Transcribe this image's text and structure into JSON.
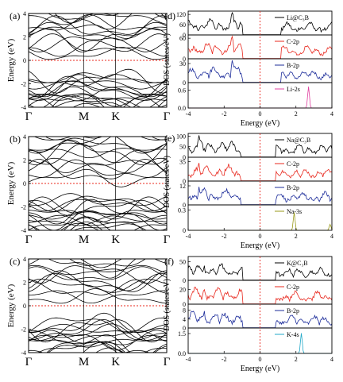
{
  "chart_data": [
    {
      "type": "line",
      "panel_label": "(a)",
      "ylabel": "Energy (eV)",
      "ylim": [
        -4,
        4
      ],
      "yticks": [
        "4",
        "2",
        "0",
        "-2",
        "-4"
      ],
      "k_labels": [
        "Γ",
        "M",
        "K",
        "Γ"
      ],
      "fermi_level": 0
    },
    {
      "type": "line",
      "panel_label": "(d)",
      "ylabel": "DOS (states/eV)",
      "xlabel": "Energy (eV)",
      "xlim": [
        -4,
        4
      ],
      "xticks": [
        "-4",
        "-2",
        "0",
        "2",
        "4"
      ],
      "subplots": [
        {
          "legend": "Li@C₃B",
          "color": "#000000",
          "yticks": [
            "120",
            "60",
            "0"
          ],
          "ylim": [
            0,
            130
          ]
        },
        {
          "legend": "C-2p",
          "color": "#e8281e",
          "yticks": [
            "60",
            "0"
          ],
          "ylim": [
            0,
            65
          ]
        },
        {
          "legend": "B-2p",
          "color": "#1c2c9a",
          "yticks": [
            "30",
            "0"
          ],
          "ylim": [
            0,
            35
          ]
        },
        {
          "legend": "Li-2s",
          "color": "#e040a0",
          "yticks": [
            "0.6",
            "0.0"
          ],
          "ylim": [
            0,
            0.8
          ]
        }
      ]
    },
    {
      "type": "line",
      "panel_label": "(b)",
      "ylabel": "Energy (eV)",
      "ylim": [
        -4,
        4
      ],
      "yticks": [
        "4",
        "2",
        "0",
        "-2",
        "-4"
      ],
      "k_labels": [
        "Γ",
        "M",
        "K",
        "Γ"
      ],
      "fermi_level": 0
    },
    {
      "type": "line",
      "panel_label": "(e)",
      "ylabel": "DOS (states/eV)",
      "xlabel": "Energy (eV)",
      "xlim": [
        -4,
        4
      ],
      "xticks": [
        "-4",
        "-2",
        "0",
        "2",
        "4"
      ],
      "subplots": [
        {
          "legend": "Na@C₃B",
          "color": "#000000",
          "yticks": [
            "100",
            "50",
            "0"
          ],
          "ylim": [
            0,
            105
          ]
        },
        {
          "legend": "C-2p",
          "color": "#e8281e",
          "yticks": [
            "35",
            "0"
          ],
          "ylim": [
            0,
            40
          ]
        },
        {
          "legend": "B-2p",
          "color": "#1c2c9a",
          "yticks": [
            "12",
            "0"
          ],
          "ylim": [
            0,
            14
          ]
        },
        {
          "legend": "Na-3s",
          "color": "#9a9a1a",
          "yticks": [
            "0.3",
            "0"
          ],
          "ylim": [
            0,
            0.35
          ]
        }
      ]
    },
    {
      "type": "line",
      "panel_label": "(c)",
      "ylabel": "Energy (eV)",
      "ylim": [
        -4,
        4
      ],
      "yticks": [
        "4",
        "2",
        "0",
        "-2",
        "-4"
      ],
      "k_labels": [
        "Γ",
        "M",
        "K",
        "Γ"
      ],
      "fermi_level": 0
    },
    {
      "type": "line",
      "panel_label": "(f)",
      "ylabel": "DOS (states/eV)",
      "xlabel": "Energy (eV)",
      "xlim": [
        -4,
        4
      ],
      "xticks": [
        "-4",
        "-2",
        "0",
        "2",
        "4"
      ],
      "subplots": [
        {
          "legend": "K@C₃B",
          "color": "#000000",
          "yticks": [
            "50",
            "0"
          ],
          "ylim": [
            0,
            60
          ]
        },
        {
          "legend": "C-2p",
          "color": "#e8281e",
          "yticks": [
            "20",
            "0"
          ],
          "ylim": [
            0,
            30
          ]
        },
        {
          "legend": "B-2p",
          "color": "#1c2c9a",
          "yticks": [
            "8",
            "4",
            "0"
          ],
          "ylim": [
            0,
            10
          ]
        },
        {
          "legend": "K-4s",
          "color": "#20a8c8",
          "yticks": [
            "1.5",
            "0.0"
          ],
          "ylim": [
            0,
            1.8
          ]
        }
      ]
    }
  ]
}
